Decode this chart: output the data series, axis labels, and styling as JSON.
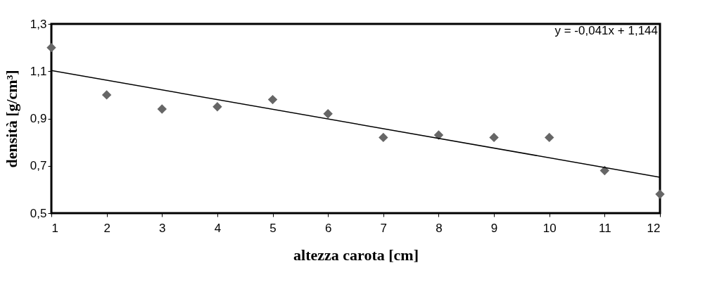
{
  "chart_data": {
    "type": "scatter",
    "xlabel": "altezza carota [cm]",
    "ylabel": "densità [g/cm³]",
    "annotations": [
      "y = -0,041x + 1,144"
    ],
    "x": [
      1,
      2,
      3,
      4,
      5,
      6,
      7,
      8,
      9,
      10,
      11,
      12
    ],
    "series": [
      {
        "color": "#666666",
        "marker": "diamond",
        "values": [
          1.2,
          1.0,
          0.94,
          0.95,
          0.98,
          0.92,
          0.82,
          0.83,
          0.82,
          0.82,
          0.68,
          0.58
        ]
      },
      {
        "type": "line",
        "color": "#000000",
        "marker": "none",
        "line_style": "solid",
        "x": [
          1,
          12
        ],
        "values": [
          1.103,
          0.652
        ]
      }
    ],
    "xlim": [
      1,
      12
    ],
    "xticks": [
      1,
      2,
      3,
      4,
      5,
      6,
      7,
      8,
      9,
      10,
      11,
      12
    ],
    "ylim": [
      0.5,
      1.3
    ],
    "yticks": [
      {
        "value": 0.5,
        "label": "0,5"
      },
      {
        "value": 0.7,
        "label": "0,7"
      },
      {
        "value": 0.9,
        "label": "0,9"
      },
      {
        "value": 1.1,
        "label": "1,1"
      },
      {
        "value": 1.3,
        "label": "1,3"
      }
    ],
    "grid": false
  }
}
